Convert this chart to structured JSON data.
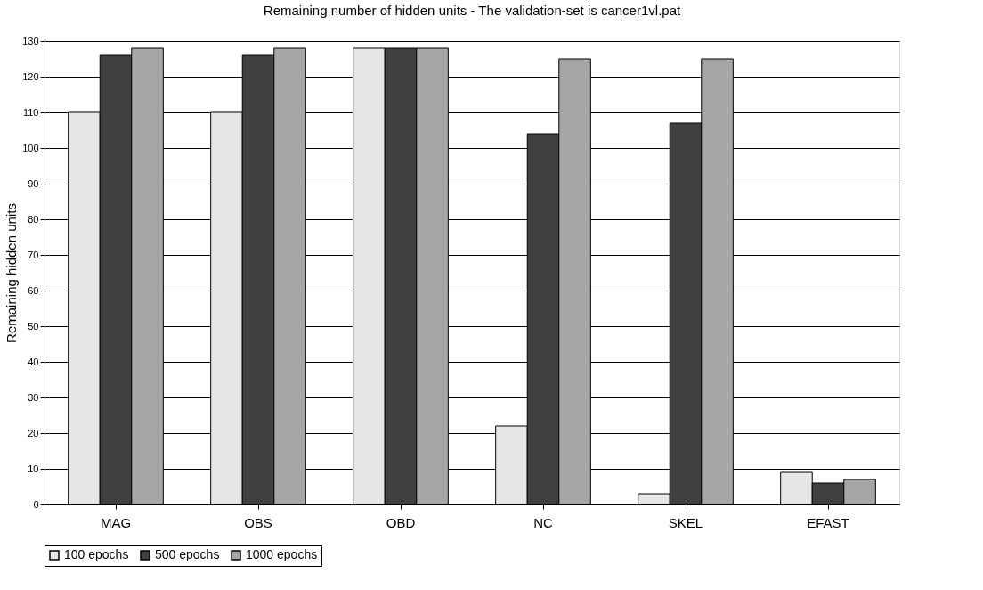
{
  "chart_data": {
    "type": "bar",
    "title": "Remaining number of hidden units - The validation-set is cancer1vl.pat",
    "ylabel": "Remaining hidden units",
    "categories": [
      "MAG",
      "OBS",
      "OBD",
      "NC",
      "SKEL",
      "EFAST"
    ],
    "series": [
      {
        "name": "100 epochs",
        "color": "#e6e6e6",
        "values": [
          110,
          110,
          128,
          22,
          3,
          9
        ]
      },
      {
        "name": "500 epochs",
        "color": "#404040",
        "values": [
          126,
          126,
          128,
          104,
          107,
          6
        ]
      },
      {
        "name": "1000 epochs",
        "color": "#a6a6a6",
        "values": [
          128,
          128,
          128,
          125,
          125,
          7
        ]
      }
    ],
    "ylim": [
      0,
      130
    ],
    "yticks": [
      0,
      10,
      20,
      30,
      40,
      50,
      60,
      70,
      80,
      90,
      100,
      110,
      120,
      130
    ],
    "grid": "y",
    "legend": "bottom"
  }
}
